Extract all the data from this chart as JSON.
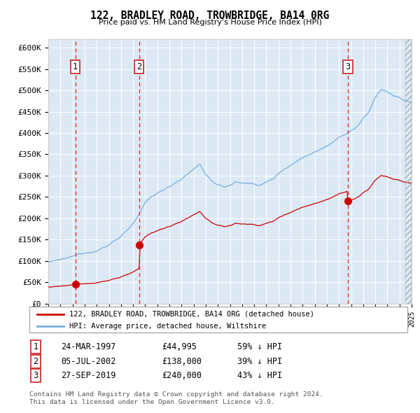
{
  "title": "122, BRADLEY ROAD, TROWBRIDGE, BA14 0RG",
  "subtitle": "Price paid vs. HM Land Registry's House Price Index (HPI)",
  "ylim": [
    0,
    620000
  ],
  "yticks": [
    0,
    50000,
    100000,
    150000,
    200000,
    250000,
    300000,
    350000,
    400000,
    450000,
    500000,
    550000,
    600000
  ],
  "ytick_labels": [
    "£0",
    "£50K",
    "£100K",
    "£150K",
    "£200K",
    "£250K",
    "£300K",
    "£350K",
    "£400K",
    "£450K",
    "£500K",
    "£550K",
    "£600K"
  ],
  "sale_prices": [
    44995,
    138000,
    240000
  ],
  "sale_date_nums": [
    1997.23,
    2002.51,
    2019.74
  ],
  "sale_labels": [
    "1",
    "2",
    "3"
  ],
  "vline_color": "#dd3333",
  "sale_marker_color": "#cc0000",
  "hpi_line_color": "#7aabdb",
  "price_line_color": "#cc0000",
  "bg_color": "#dce9f5",
  "legend_entry1": "122, BRADLEY ROAD, TROWBRIDGE, BA14 0RG (detached house)",
  "legend_entry2": "HPI: Average price, detached house, Wiltshire",
  "table_rows": [
    [
      "1",
      "24-MAR-1997",
      "£44,995",
      "59% ↓ HPI"
    ],
    [
      "2",
      "05-JUL-2002",
      "£138,000",
      "39% ↓ HPI"
    ],
    [
      "3",
      "27-SEP-2019",
      "£240,000",
      "43% ↓ HPI"
    ]
  ],
  "footnote": "Contains HM Land Registry data © Crown copyright and database right 2024.\nThis data is licensed under the Open Government Licence v3.0.",
  "x_start_year": 1995,
  "x_end_year": 2025,
  "hpi_anchors_x": [
    1995.0,
    1996.0,
    1997.0,
    1998.0,
    1999.0,
    2000.0,
    2001.0,
    2002.0,
    2002.5,
    2003.0,
    2003.5,
    2004.5,
    2005.5,
    2006.5,
    2007.5,
    2008.0,
    2008.5,
    2009.0,
    2009.5,
    2010.0,
    2010.5,
    2011.5,
    2012.5,
    2013.5,
    2014.5,
    2015.5,
    2016.5,
    2017.5,
    2018.5,
    2019.0,
    2019.5,
    2020.0,
    2020.5,
    2021.0,
    2021.5,
    2022.0,
    2022.5,
    2023.0,
    2023.5,
    2024.0,
    2024.5,
    2025.0
  ],
  "hpi_anchors_y": [
    98000,
    100000,
    106000,
    116000,
    125000,
    138000,
    160000,
    190000,
    210000,
    235000,
    250000,
    265000,
    285000,
    305000,
    328000,
    305000,
    290000,
    278000,
    272000,
    278000,
    285000,
    282000,
    280000,
    292000,
    318000,
    338000,
    355000,
    368000,
    388000,
    402000,
    408000,
    415000,
    425000,
    445000,
    460000,
    490000,
    510000,
    505000,
    495000,
    490000,
    482000,
    478000
  ]
}
